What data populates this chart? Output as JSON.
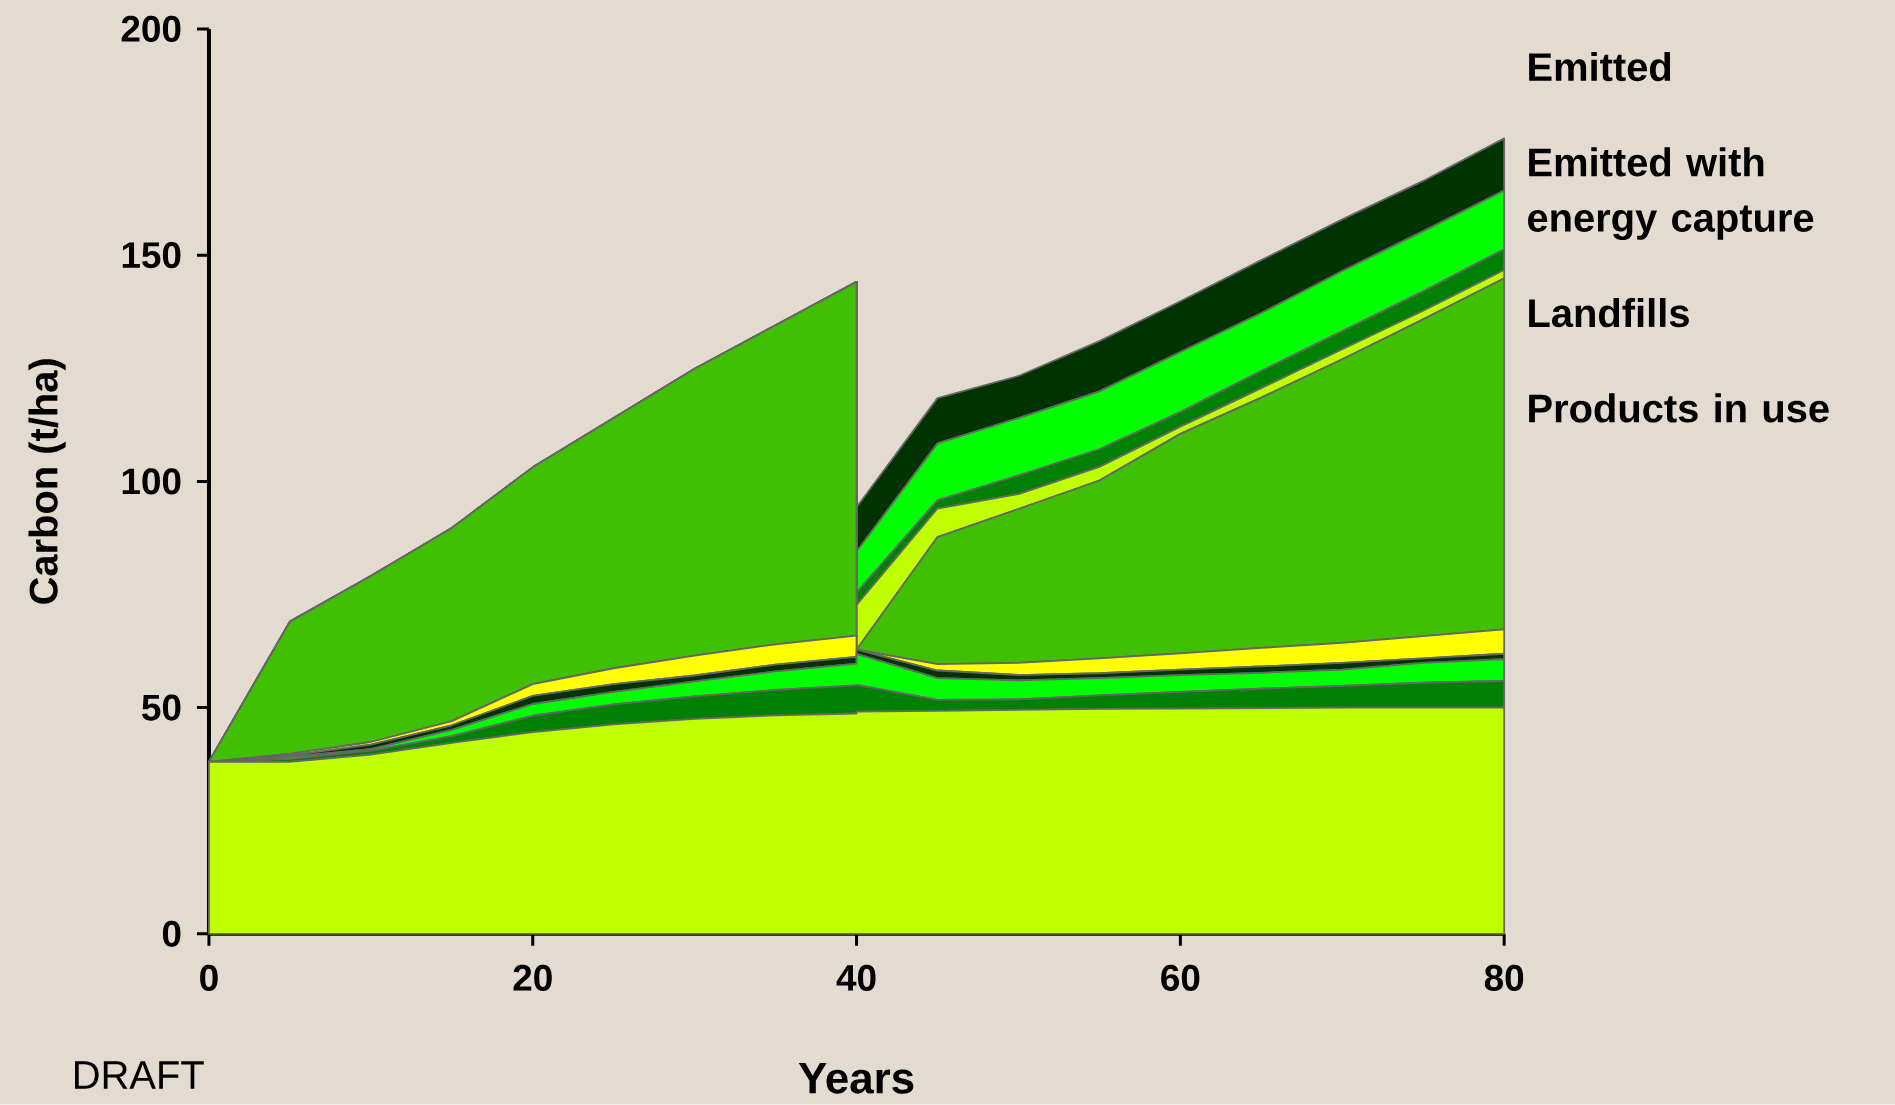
{
  "chart_data": {
    "type": "area",
    "stacked": true,
    "xlabel": "Years",
    "ylabel": "Carbon (t/ha)",
    "x": [
      0,
      5,
      10,
      15,
      20,
      25,
      30,
      35,
      40,
      40,
      45,
      50,
      55,
      60,
      65,
      70,
      75,
      80
    ],
    "xlim": [
      0,
      80
    ],
    "xticks": [
      0,
      20,
      40,
      60,
      80
    ],
    "ylim": [
      0,
      200
    ],
    "yticks": [
      0,
      50,
      100,
      150,
      200
    ],
    "series": [
      {
        "color": "#c0ff00",
        "values": [
          38,
          38,
          39.6,
          42.2,
          44.6,
          46.3,
          47.5,
          48.3,
          48.7,
          49.1,
          49.3,
          49.5,
          49.7,
          49.8,
          49.9,
          50,
          50,
          50
        ]
      },
      {
        "color": "#008000",
        "values": [
          0,
          0.6,
          0.9,
          1.5,
          3.6,
          4.4,
          5.0,
          5.6,
          6.2,
          5.9,
          2.4,
          2.3,
          3.0,
          3.7,
          4.3,
          4.8,
          5.5,
          5.9
        ]
      },
      {
        "color": "#00ff00",
        "values": [
          0,
          0.5,
          0.3,
          1.4,
          2.6,
          2.8,
          3.3,
          4.1,
          4.8,
          6.9,
          4.8,
          4.2,
          3.8,
          3.7,
          3.5,
          3.6,
          4.4,
          4.8
        ]
      },
      {
        "color": "#003300",
        "values": [
          0,
          0.3,
          1.0,
          1.0,
          1.8,
          1.7,
          1.3,
          1.5,
          1.5,
          0.9,
          1.7,
          1.2,
          1.1,
          1.2,
          1.4,
          1.5,
          1.0,
          1.2
        ]
      },
      {
        "color": "#ffff00",
        "values": [
          0,
          0.4,
          0.6,
          0.9,
          2.6,
          3.5,
          4.4,
          4.5,
          4.7,
          0,
          1.4,
          2.7,
          3.3,
          3.6,
          4.1,
          4.4,
          4.9,
          5.4
        ]
      },
      {
        "color": "#40c000",
        "values": [
          0,
          29.2,
          36.7,
          42.7,
          47.9,
          55.3,
          63.4,
          70.5,
          78.2,
          0,
          28.1,
          34.0,
          39.3,
          48.5,
          55.3,
          62.7,
          70.0,
          77.6
        ]
      },
      {
        "name": "Products in use",
        "color": "#c0ff00",
        "values": [
          0,
          0,
          0,
          0,
          0,
          0,
          0,
          0,
          0,
          9.9,
          6.3,
          3.3,
          3.0,
          1.6,
          2.1,
          2.2,
          1.9,
          1.8
        ]
      },
      {
        "name": "Landfills",
        "color": "#008000",
        "values": [
          0,
          0,
          0,
          0,
          0,
          0,
          0,
          0,
          0,
          2.7,
          1.8,
          4.1,
          3.9,
          3.2,
          3.8,
          4.0,
          4.3,
          4.6
        ]
      },
      {
        "name": "Emitted with energy capture",
        "color": "#00ff00",
        "values": [
          0,
          0,
          0,
          0,
          0,
          0,
          0,
          0,
          0,
          9.1,
          12.6,
          12.7,
          12.8,
          13.3,
          12.8,
          13.3,
          13.3,
          13.0
        ]
      },
      {
        "name": "Emitted",
        "color": "#003300",
        "values": [
          0,
          0,
          0,
          0,
          0,
          0,
          0,
          0,
          0,
          9.8,
          10.0,
          9.3,
          11.1,
          11.2,
          11.7,
          11.4,
          11.1,
          11.5
        ]
      }
    ],
    "annotations": [
      "DRAFT"
    ]
  }
}
